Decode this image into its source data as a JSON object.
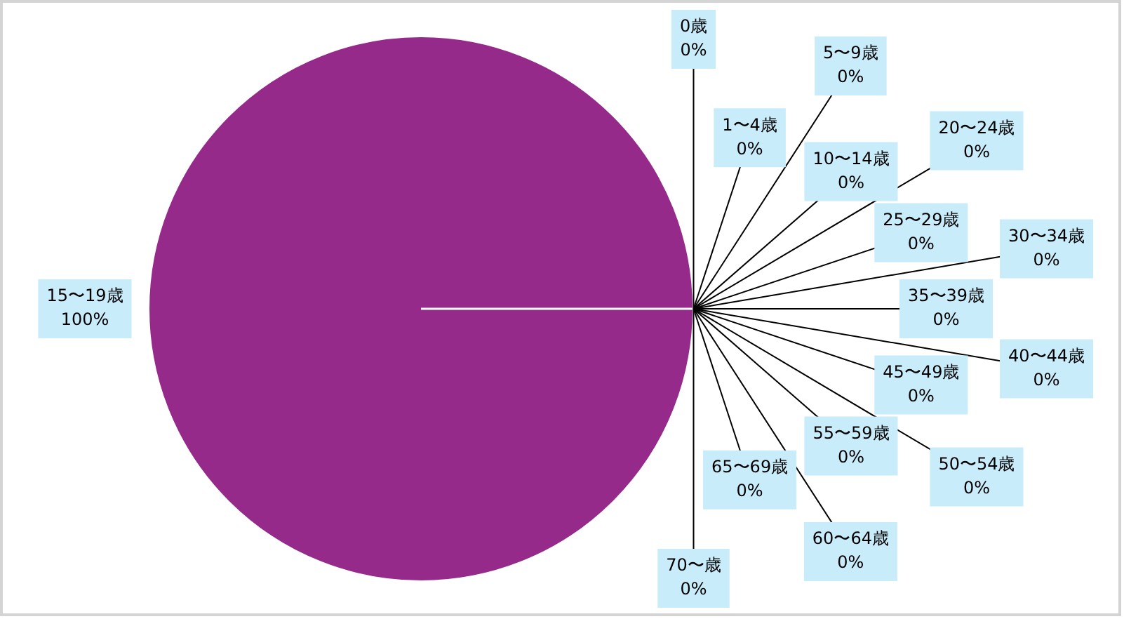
{
  "chart_data": {
    "type": "pie",
    "categories": [
      "0歳",
      "1〜4歳",
      "5〜9歳",
      "10〜14歳",
      "15〜19歳",
      "20〜24歳",
      "25〜29歳",
      "30〜34歳",
      "35〜39歳",
      "40〜44歳",
      "45〜49歳",
      "50〜54歳",
      "55〜59歳",
      "60〜64歳",
      "65〜69歳",
      "70〜歳"
    ],
    "values": [
      0,
      0,
      0,
      0,
      100,
      0,
      0,
      0,
      0,
      0,
      0,
      0,
      0,
      0,
      0,
      0
    ],
    "colors": [
      "#952a8a",
      "#952a8a",
      "#952a8a",
      "#952a8a",
      "#952a8a",
      "#952a8a",
      "#952a8a",
      "#952a8a",
      "#952a8a",
      "#952a8a",
      "#952a8a",
      "#952a8a",
      "#952a8a",
      "#952a8a",
      "#952a8a",
      "#952a8a"
    ],
    "value_labels": [
      "0%",
      "0%",
      "0%",
      "0%",
      "100%",
      "0%",
      "0%",
      "0%",
      "0%",
      "0%",
      "0%",
      "0%",
      "0%",
      "0%",
      "0%",
      "0%"
    ]
  }
}
